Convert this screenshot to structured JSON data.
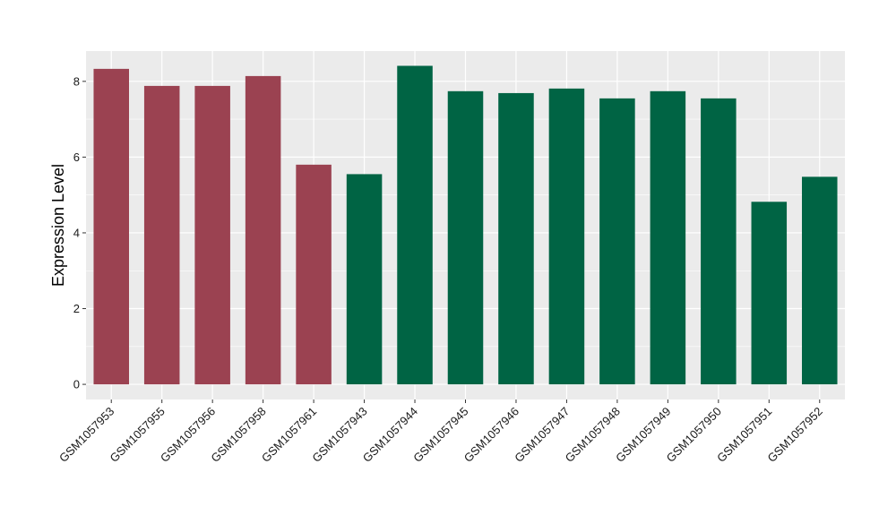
{
  "chart_data": {
    "type": "bar",
    "title": "",
    "xlabel": "",
    "ylabel": "Expression Level",
    "ylim": [
      -0.4,
      8.8
    ],
    "yticks": [
      0,
      2,
      4,
      6,
      8
    ],
    "grid": true,
    "background": "#ebebeb",
    "categories": [
      "GSM1057953",
      "GSM1057955",
      "GSM1057956",
      "GSM1057958",
      "GSM1057961",
      "GSM1057943",
      "GSM1057944",
      "GSM1057945",
      "GSM1057946",
      "GSM1057947",
      "GSM1057948",
      "GSM1057949",
      "GSM1057950",
      "GSM1057951",
      "GSM1057952"
    ],
    "values": [
      8.33,
      7.88,
      7.88,
      8.14,
      5.8,
      5.55,
      8.41,
      7.74,
      7.69,
      7.81,
      7.55,
      7.74,
      7.55,
      4.82,
      5.48
    ],
    "bar_colors": [
      "#9b4251",
      "#9b4251",
      "#9b4251",
      "#9b4251",
      "#9b4251",
      "#006444",
      "#006444",
      "#006444",
      "#006444",
      "#006444",
      "#006444",
      "#006444",
      "#006444",
      "#006444",
      "#006444"
    ]
  }
}
